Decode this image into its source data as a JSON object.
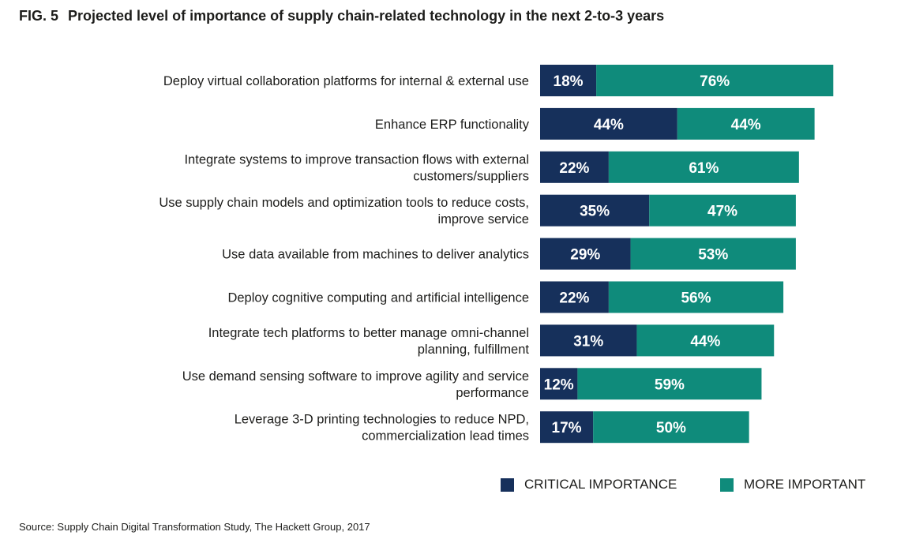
{
  "figure": {
    "number": "FIG. 5",
    "title": "Projected level of importance of supply chain-related technology in the next 2-to-3 years",
    "source": "Source: Supply Chain Digital Transformation Study, The Hackett Group, 2017"
  },
  "colors": {
    "critical": "#16305b",
    "more": "#0f8b7b",
    "label_text": "#ffffff"
  },
  "chart_data": {
    "type": "bar",
    "orientation": "horizontal",
    "stacked": true,
    "title": "Projected level of importance of supply chain-related technology in the next 2-to-3 years",
    "xlabel": "",
    "ylabel": "",
    "xlim": [
      0,
      100
    ],
    "grid": false,
    "legend_position": "bottom-right",
    "value_suffix": "%",
    "categories": [
      [
        "Deploy virtual collaboration platforms for internal & external use"
      ],
      [
        "Enhance ERP functionality"
      ],
      [
        "Integrate systems to improve transaction flows with external",
        "customers/suppliers"
      ],
      [
        "Use supply chain models and optimization tools to reduce costs,",
        "improve service"
      ],
      [
        "Use data available from machines to deliver analytics"
      ],
      [
        "Deploy cognitive computing and artificial intelligence"
      ],
      [
        "Integrate tech platforms to better manage omni-channel",
        "planning, fulfillment"
      ],
      [
        "Use demand sensing software to improve agility and service",
        "performance"
      ],
      [
        "Leverage 3-D printing technologies to reduce NPD,",
        "commercialization lead times"
      ]
    ],
    "series": [
      {
        "name": "CRITICAL IMPORTANCE",
        "color": "#16305b",
        "values": [
          18,
          44,
          22,
          35,
          29,
          22,
          31,
          12,
          17
        ]
      },
      {
        "name": "MORE IMPORTANT",
        "color": "#0f8b7b",
        "values": [
          76,
          44,
          61,
          47,
          53,
          56,
          44,
          59,
          50
        ]
      }
    ]
  }
}
